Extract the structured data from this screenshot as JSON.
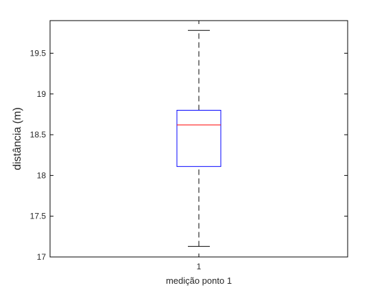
{
  "chart_data": {
    "type": "box",
    "xlabel": "medição ponto 1",
    "ylabel": "distância (m)",
    "ylim": [
      17,
      19.9
    ],
    "yticks": [
      17,
      17.5,
      18,
      18.5,
      19,
      19.5
    ],
    "ytick_labels": [
      "17",
      "17.5",
      "18",
      "18.5",
      "19",
      "19.5"
    ],
    "categories": [
      "1"
    ],
    "boxes": [
      {
        "category": "1",
        "whisker_low": 17.13,
        "q1": 18.11,
        "median": 18.62,
        "q3": 18.8,
        "whisker_high": 19.78
      }
    ],
    "colors": {
      "box": "#0000ff",
      "median": "#ff0000",
      "whisker": "#000000",
      "axes": "#000000"
    },
    "grid": false
  }
}
